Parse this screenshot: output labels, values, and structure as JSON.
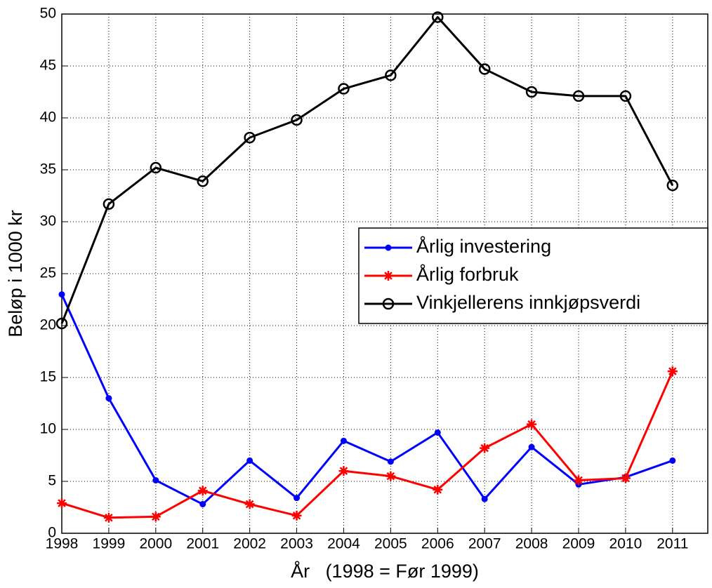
{
  "chart_data": {
    "type": "line",
    "x": [
      1998,
      1999,
      2000,
      2001,
      2002,
      2003,
      2004,
      2005,
      2006,
      2007,
      2008,
      2009,
      2010,
      2011
    ],
    "xlabel": "År   (1998 = Før 1999)",
    "ylabel": "Beløp i 1000 kr",
    "xlim": [
      1998,
      2011.75
    ],
    "xticks": [
      1998,
      1999,
      2000,
      2001,
      2002,
      2003,
      2004,
      2005,
      2006,
      2007,
      2008,
      2009,
      2010,
      2011
    ],
    "ylim": [
      0,
      50
    ],
    "yticks": [
      0,
      5,
      10,
      15,
      20,
      25,
      30,
      35,
      40,
      45,
      50
    ],
    "grid": true,
    "legend": "right",
    "series": [
      {
        "name": "Årlig investering",
        "color": "#0000ff",
        "marker": "dot",
        "values": [
          23,
          13,
          5.1,
          2.8,
          7,
          3.4,
          8.9,
          6.9,
          9.7,
          3.3,
          8.3,
          4.7,
          5.4,
          7
        ]
      },
      {
        "name": "Årlig forbruk",
        "color": "#ff0000",
        "marker": "asterisk",
        "values": [
          2.9,
          1.5,
          1.6,
          4.1,
          2.8,
          1.7,
          6,
          5.5,
          4.2,
          8.2,
          10.5,
          5.1,
          5.3,
          15.6
        ]
      },
      {
        "name": "Vinkjellerens innkjøpsverdi",
        "color": "#000000",
        "marker": "circle",
        "values": [
          20.2,
          31.7,
          35.2,
          33.9,
          38.1,
          39.8,
          42.8,
          44.1,
          49.7,
          44.7,
          42.5,
          42.1,
          42.1,
          33.5
        ]
      }
    ]
  }
}
